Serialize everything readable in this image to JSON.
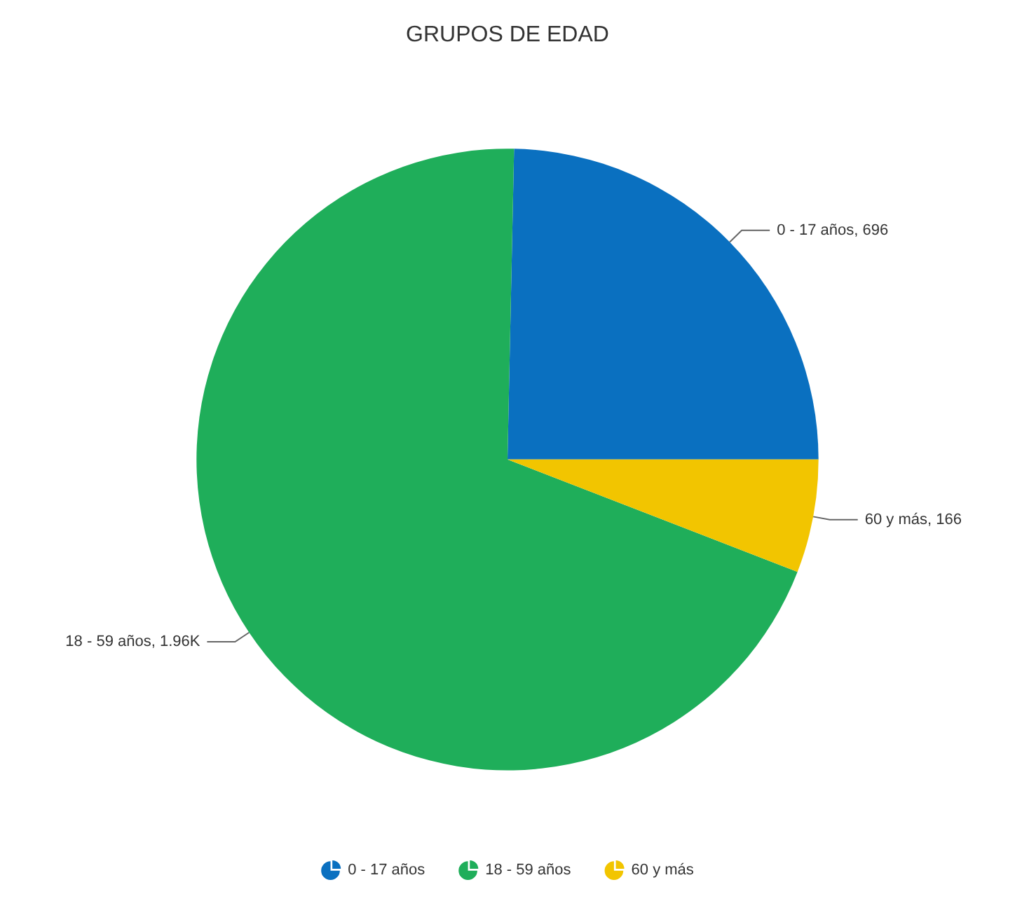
{
  "chart_data": {
    "type": "pie",
    "title": "GRUPOS DE EDAD",
    "categories": [
      "0 - 17 años",
      "18 - 59 años",
      "60 y más"
    ],
    "values": [
      696,
      1960,
      166
    ],
    "colors": [
      "#0a70c0",
      "#1fae5a",
      "#f2c500"
    ],
    "value_labels": [
      "0 - 17 años, 696",
      "18 - 59 años, 1.96K",
      "60 y más, 166"
    ],
    "legend": "bottom"
  }
}
